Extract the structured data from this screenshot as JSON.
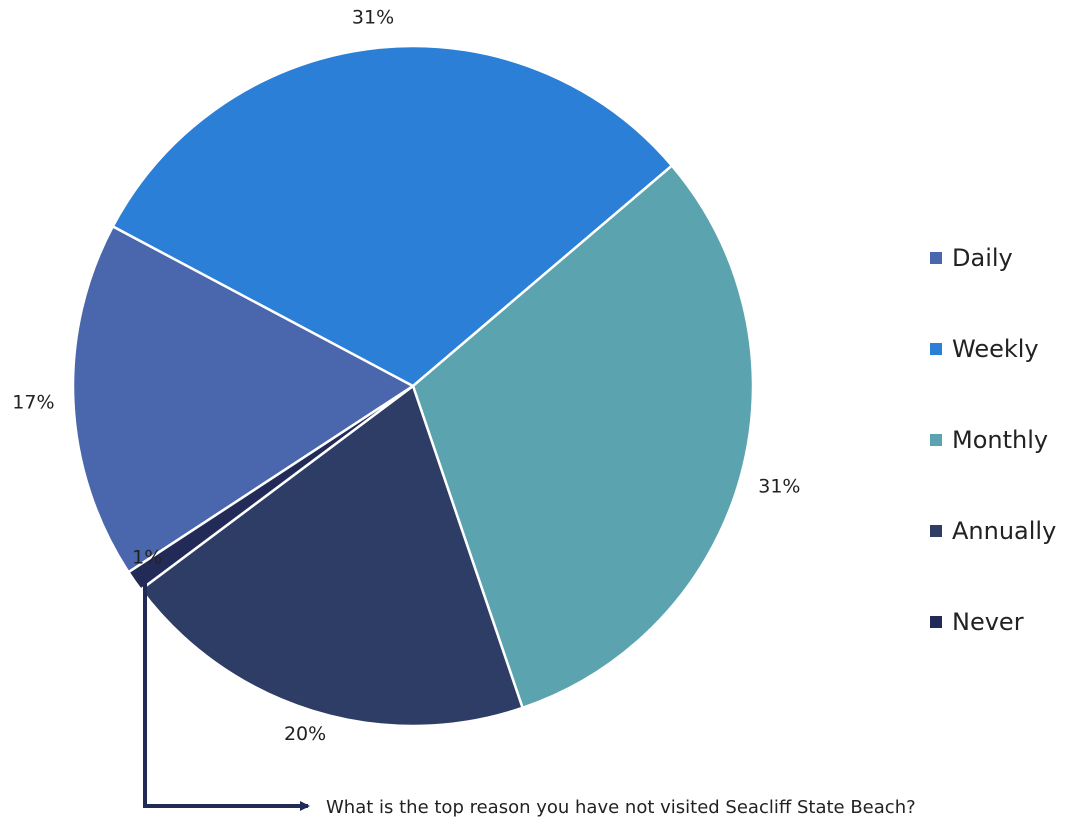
{
  "chart_data": {
    "type": "pie",
    "title": "",
    "categories": [
      "Daily",
      "Weekly",
      "Monthly",
      "Annually",
      "Never"
    ],
    "values": [
      17,
      31,
      31,
      20,
      1
    ],
    "value_labels": [
      "17%",
      "31%",
      "31%",
      "20%",
      "1%"
    ],
    "colors": [
      "#4A66AC",
      "#2B7FD7",
      "#5BA4AF",
      "#2E3D66",
      "#222A57"
    ],
    "legend": {
      "placement": "right",
      "entries": [
        "Daily",
        "Weekly",
        "Monthly",
        "Annually",
        "Never"
      ]
    },
    "annotation": {
      "text": "What is the top reason you have not visited Seacliff State Beach?",
      "points_from": "Never"
    }
  }
}
